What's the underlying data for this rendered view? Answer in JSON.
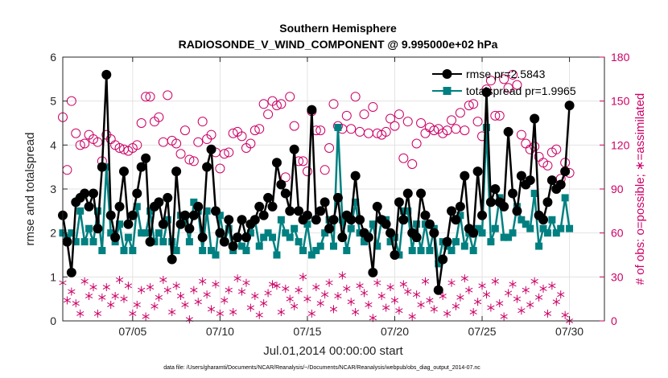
{
  "chart_data": {
    "type": "line",
    "title_line1": "Southern Hemisphere",
    "title_line2": "RADIOSONDE_V_WIND_COMPONENT @ 9.995000e+02 hPa",
    "xlabel": "Jul.01,2014 00:00:00 start",
    "ylabel_left": "rmse and totalspread",
    "ylabel_right": "# of obs: o=possible; ∗=assimilated",
    "footnote": "data file: /Users/gharamti/Documents/NCAR/Reanalysis/~/Documents/NCAR/Reanalysis/webpub/obs_diag_output_2014-07.nc",
    "xlim": [
      1.0,
      32.0
    ],
    "ylim_left": [
      0,
      6
    ],
    "ylim_right": [
      0,
      180
    ],
    "x_ticks": [
      {
        "value": 5,
        "label": "07/05"
      },
      {
        "value": 10,
        "label": "07/10"
      },
      {
        "value": 15,
        "label": "07/15"
      },
      {
        "value": 20,
        "label": "07/20"
      },
      {
        "value": 25,
        "label": "07/25"
      },
      {
        "value": 30,
        "label": "07/30"
      }
    ],
    "y_ticks_left": [
      0,
      1,
      2,
      3,
      4,
      5,
      6
    ],
    "y_ticks_right": [
      0,
      30,
      60,
      90,
      120,
      150,
      180
    ],
    "legend_position": "top-right",
    "colors": {
      "rmse": "#000000",
      "totalspread": "#008080",
      "obs": "#cc0066"
    },
    "x_start": 1.0,
    "x_step": 0.25,
    "series": [
      {
        "name": "rmse pr=2.5843",
        "axis": "left",
        "values": [
          2.4,
          1.8,
          1.1,
          2.7,
          2.8,
          2.9,
          2.6,
          2.9,
          2.1,
          3.5,
          5.6,
          2.4,
          1.9,
          2.6,
          3.4,
          2.2,
          2.4,
          2.9,
          3.5,
          3.7,
          1.8,
          2.6,
          2.7,
          2.2,
          2.8,
          1.4,
          3.4,
          2.2,
          2.4,
          2.1,
          2.4,
          2.6,
          1.9,
          3.5,
          3.9,
          2.5,
          2.0,
          1.8,
          2.3,
          1.7,
          1.9,
          2.3,
          1.9,
          2.2,
          2.3,
          2.6,
          2.4,
          2.8,
          2.6,
          3.6,
          3.1,
          2.9,
          2.5,
          3.9,
          2.5,
          2.3,
          2.4,
          4.8,
          2.3,
          2.5,
          2.7,
          2.1,
          2.3,
          2.8,
          1.9,
          2.4,
          2.3,
          3.3,
          2.3,
          2.0,
          1.9,
          1.1,
          2.6,
          2.3,
          2.2,
          2.0,
          1.5,
          2.7,
          2.3,
          2.9,
          2.0,
          1.9,
          2.9,
          2.4,
          2.2,
          2.0,
          0.7,
          1.4,
          1.8,
          2.5,
          2.3,
          2.6,
          3.3,
          2.1,
          2.0,
          3.4,
          2.4,
          5.2,
          2.7,
          3.0,
          2.7,
          2.6,
          4.3,
          2.9,
          2.5,
          3.3,
          3.1,
          3.2,
          4.6,
          2.4,
          2.3,
          2.7,
          3.2,
          3.0,
          3.1,
          3.4,
          4.9
        ]
      },
      {
        "name": "totalspread pr=1.9965",
        "axis": "left",
        "values": [
          2.0,
          1.9,
          2.0,
          1.8,
          2.5,
          1.8,
          2.1,
          1.8,
          2.5,
          1.6,
          3.5,
          2.0,
          1.8,
          2.2,
          1.6,
          1.9,
          1.6,
          2.6,
          2.0,
          2.0,
          2.5,
          1.8,
          2.0,
          1.8,
          2.3,
          1.8,
          1.6,
          2.4,
          2.3,
          1.8,
          2.7,
          2.5,
          1.6,
          2.5,
          1.6,
          1.5,
          2.4,
          1.8,
          2.1,
          1.6,
          1.9,
          1.7,
          1.6,
          2.0,
          2.3,
          1.7,
          1.9,
          2.0,
          1.9,
          1.5,
          2.3,
          2.0,
          1.9,
          2.1,
          1.8,
          1.6,
          2.2,
          1.5,
          1.6,
          1.7,
          2.0,
          2.3,
          1.7,
          4.4,
          2.3,
          1.6,
          2.1,
          2.7,
          2.0,
          1.8,
          1.9,
          2.2,
          1.7,
          2.3,
          2.3,
          1.8,
          1.9,
          1.5,
          2.5,
          2.5,
          1.6,
          2.2,
          1.6,
          2.2,
          1.6,
          2.1,
          1.3,
          1.8,
          1.7,
          1.6,
          1.8,
          2.4,
          1.7,
          2.0,
          1.6,
          2.1,
          2.0,
          4.4,
          1.8,
          2.1,
          2.8,
          1.9,
          1.9,
          2.0,
          2.6,
          2.3,
          2.2,
          2.1,
          2.9,
          1.7,
          2.1,
          2.0,
          2.3,
          2.0,
          2.1,
          2.8,
          2.1
        ]
      },
      {
        "name": "possible",
        "axis": "right",
        "marker": "circle",
        "values": [
          139,
          103,
          150,
          128,
          120,
          121,
          127,
          124,
          122,
          109,
          127,
          124,
          120,
          118,
          117,
          116,
          118,
          120,
          135,
          153,
          153,
          136,
          139,
          122,
          154,
          123,
          121,
          114,
          130,
          110,
          109,
          122,
          136,
          124,
          127,
          115,
          104,
          114,
          115,
          128,
          129,
          126,
          118,
          121,
          130,
          131,
          148,
          141,
          150,
          147,
          148,
          98,
          153,
          133,
          109,
          109,
          102,
          143,
          130,
          130,
          103,
          118,
          148,
          133,
          131,
          140,
          131,
          153,
          129,
          141,
          128,
          146,
          128,
          127,
          129,
          138,
          133,
          141,
          111,
          136,
          107,
          121,
          135,
          128,
          132,
          130,
          131,
          128,
          130,
          137,
          131,
          142,
          130,
          147,
          148,
          136,
          126,
          158,
          164,
          140,
          140,
          165,
          159,
          168,
          161,
          127,
          121,
          117,
          119,
          112,
          108,
          106,
          115,
          117,
          97,
          108,
          101
        ]
      },
      {
        "name": "assimilated",
        "axis": "right",
        "marker": "asterisk",
        "values": [
          26,
          14,
          20,
          12,
          5,
          27,
          17,
          23,
          5,
          16,
          23,
          11,
          17,
          28,
          15,
          24,
          5,
          11,
          21,
          3,
          23,
          10,
          16,
          28,
          21,
          6,
          24,
          17,
          11,
          1,
          21,
          13,
          27,
          18,
          8,
          25,
          5,
          14,
          21,
          6,
          29,
          20,
          26,
          9,
          17,
          4,
          12,
          19,
          25,
          24,
          6,
          22,
          15,
          10,
          21,
          30,
          15,
          5,
          23,
          12,
          18,
          26,
          8,
          17,
          31,
          22,
          13,
          6,
          24,
          19,
          11,
          2,
          26,
          17,
          9,
          23,
          14,
          7,
          25,
          20,
          3,
          18,
          11,
          27,
          14,
          8,
          22,
          17,
          5,
          26,
          10,
          16,
          29,
          21,
          6,
          13,
          24,
          18,
          9,
          27,
          12,
          3,
          19,
          25,
          15,
          7,
          21,
          11,
          27,
          16,
          22,
          5,
          24,
          13,
          18,
          4,
          0
        ]
      }
    ]
  }
}
